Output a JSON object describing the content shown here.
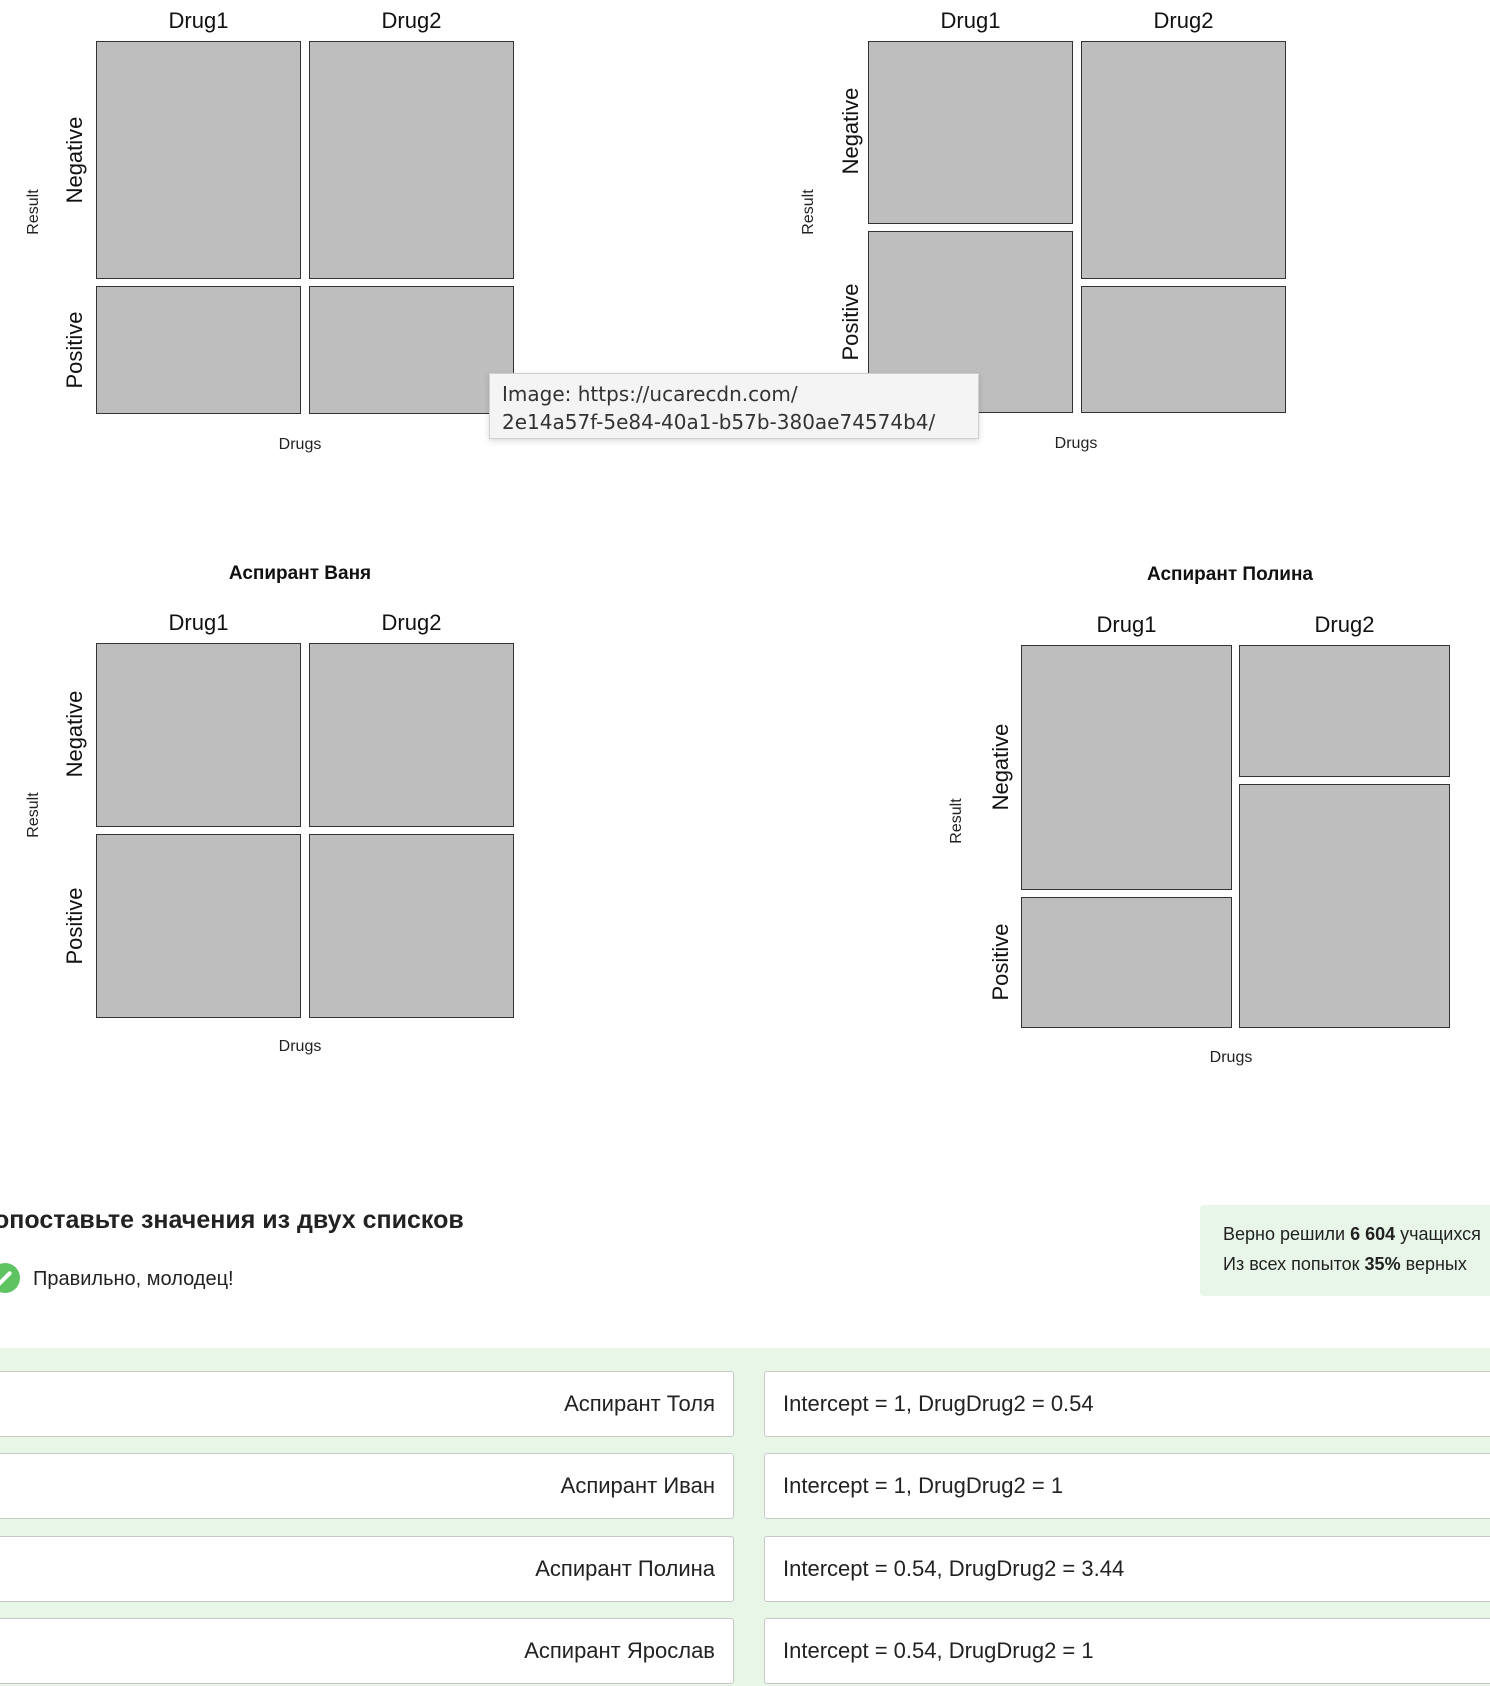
{
  "plots": [
    {
      "title": "",
      "col_labels": [
        "Drug1",
        "Drug2"
      ],
      "row_labels": [
        "Negative",
        "Positive"
      ],
      "ylabel": "Result",
      "xlabel": "Drugs"
    },
    {
      "title": "",
      "col_labels": [
        "Drug1",
        "Drug2"
      ],
      "row_labels": [
        "Negative",
        "Positive"
      ],
      "ylabel": "Result",
      "xlabel": "Drugs"
    },
    {
      "title": "Аспирант Ваня",
      "col_labels": [
        "Drug1",
        "Drug2"
      ],
      "row_labels": [
        "Negative",
        "Positive"
      ],
      "ylabel": "Result",
      "xlabel": "Drugs"
    },
    {
      "title": "Аспирант Полина",
      "col_labels": [
        "Drug1",
        "Drug2"
      ],
      "row_labels": [
        "Negative",
        "Positive"
      ],
      "ylabel": "Result",
      "xlabel": "Drugs"
    }
  ],
  "tooltip": {
    "line1": "Image: https://ucarecdn.com/",
    "line2": "2e14a57f-5e84-40a1-b57b-380ae74574b4/"
  },
  "task": {
    "title": "опоставьте значения из двух списков",
    "feedback": "Правильно, молодец!",
    "stats_line1_prefix": "Верно решили ",
    "stats_line1_count": "6 604",
    "stats_line1_suffix": " учащихся",
    "stats_line2_prefix": "Из всех попыток ",
    "stats_line2_percent": "35%",
    "stats_line2_suffix": " верных"
  },
  "matches": [
    {
      "left": "Аспирант Толя",
      "right": "Intercept = 1, DrugDrug2 = 0.54"
    },
    {
      "left": "Аспирант Иван",
      "right": "Intercept = 1, DrugDrug2 = 1"
    },
    {
      "left": "Аспирант Полина",
      "right": "Intercept = 0.54, DrugDrug2 = 3.44"
    },
    {
      "left": "Аспирант Ярослав",
      "right": "Intercept = 0.54, DrugDrug2 = 1"
    }
  ],
  "colors": {
    "cell": "#bebebe",
    "accent_green": "#5ec462",
    "panel_green": "#e8f6e8"
  }
}
